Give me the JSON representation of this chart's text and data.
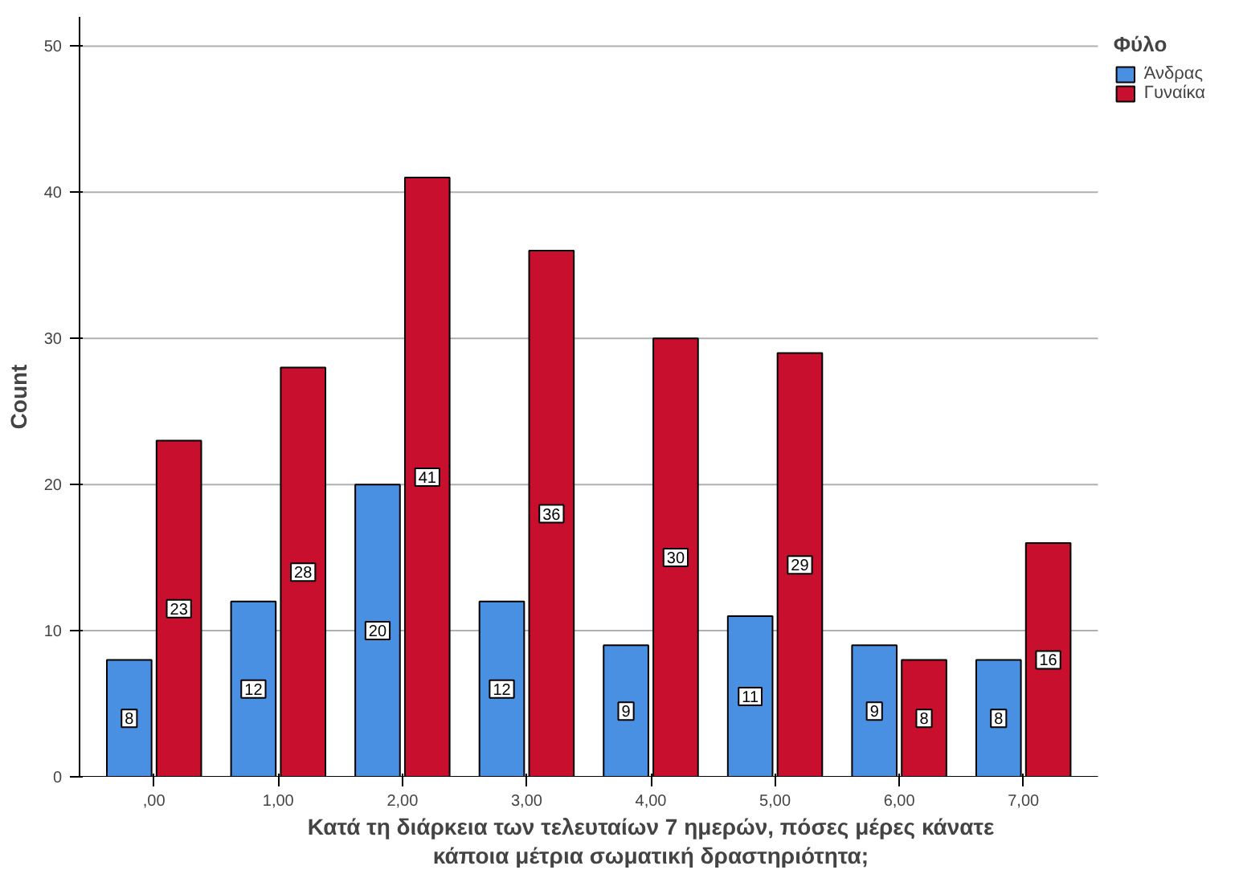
{
  "chart_data": {
    "type": "bar",
    "xlabel": "Κατά τη διάρκεια των τελευταίων 7 ημερών, πόσες μέρες κάνατε κάποια μέτρια σωματική δραστηριότητα;",
    "ylabel": "Count",
    "legend_title": "Φύλο",
    "categories": [
      ",00",
      "1,00",
      "2,00",
      "3,00",
      "4,00",
      "5,00",
      "6,00",
      "7,00"
    ],
    "series": [
      {
        "name": "Άνδρας",
        "color": "#4a90e2",
        "values": [
          8,
          12,
          20,
          12,
          9,
          11,
          9,
          8
        ]
      },
      {
        "name": "Γυναίκα",
        "color": "#c8102e",
        "values": [
          23,
          28,
          41,
          36,
          30,
          29,
          8,
          16
        ]
      }
    ],
    "ylim": [
      0,
      52
    ],
    "yticks": [
      0,
      10,
      20,
      30,
      40,
      50
    ],
    "grid": "y",
    "legend": "top right",
    "data_labels": true
  }
}
